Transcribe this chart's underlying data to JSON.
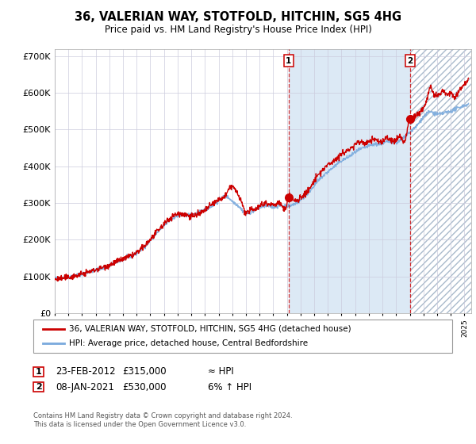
{
  "title": "36, VALERIAN WAY, STOTFOLD, HITCHIN, SG5 4HG",
  "subtitle": "Price paid vs. HM Land Registry's House Price Index (HPI)",
  "ylim": [
    0,
    720000
  ],
  "xlim_start": 1995.0,
  "xlim_end": 2025.5,
  "hpi_color": "#7aaadd",
  "price_color": "#cc0000",
  "bg_color": "#ffffff",
  "plot_bg_color": "#ffffff",
  "shade_color": "#dce9f5",
  "grid_color": "#ccccdd",
  "marker1_date": 2012.13,
  "marker1_value": 315000,
  "marker2_date": 2021.03,
  "marker2_value": 530000,
  "legend_label1": "36, VALERIAN WAY, STOTFOLD, HITCHIN, SG5 4HG (detached house)",
  "legend_label2": "HPI: Average price, detached house, Central Bedfordshire",
  "annot1_label": "1",
  "annot1_date": "23-FEB-2012",
  "annot1_price": "£315,000",
  "annot1_hpi": "≈ HPI",
  "annot2_label": "2",
  "annot2_date": "08-JAN-2021",
  "annot2_price": "£530,000",
  "annot2_hpi": "6% ↑ HPI",
  "footer": "Contains HM Land Registry data © Crown copyright and database right 2024.\nThis data is licensed under the Open Government Licence v3.0.",
  "yticks": [
    0,
    100000,
    200000,
    300000,
    400000,
    500000,
    600000,
    700000
  ],
  "ytick_labels": [
    "£0",
    "£100K",
    "£200K",
    "£300K",
    "£400K",
    "£500K",
    "£600K",
    "£700K"
  ]
}
